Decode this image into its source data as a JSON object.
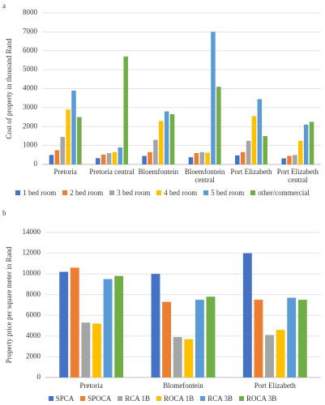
{
  "chart_data": [
    {
      "type": "bar",
      "panel_label": "a",
      "y_label": "Cost of property in thousand Rand",
      "categories": [
        "Pretoria",
        "Pretoria central",
        "Bloemfontein",
        "Bloemfontein central",
        "Port Elizabeth",
        "Port Elizabeth central"
      ],
      "series": [
        {
          "name": "1 bed room",
          "color": "#4472c4",
          "values": [
            500,
            330,
            450,
            380,
            480,
            320
          ]
        },
        {
          "name": "2 bed room",
          "color": "#ed7d31",
          "values": [
            750,
            520,
            650,
            600,
            650,
            450
          ]
        },
        {
          "name": "3 bed room",
          "color": "#a5a5a5",
          "values": [
            1450,
            600,
            1300,
            650,
            1250,
            500
          ]
        },
        {
          "name": "4 bed room",
          "color": "#ffc000",
          "values": [
            2900,
            650,
            2300,
            620,
            2550,
            1250
          ]
        },
        {
          "name": "5 bed room",
          "color": "#5b9bd5",
          "values": [
            3900,
            900,
            2800,
            7000,
            3450,
            2100
          ]
        },
        {
          "name": "other/commercial",
          "color": "#70ad47",
          "values": [
            2500,
            5700,
            2650,
            4100,
            1500,
            2250
          ]
        }
      ],
      "ylim": [
        0,
        8000
      ],
      "yticks": [
        0,
        1000,
        2000,
        3000,
        4000,
        5000,
        6000,
        7000,
        8000
      ],
      "grid": true
    },
    {
      "type": "bar",
      "panel_label": "b",
      "y_label": "Property price per square meter  in  Rand",
      "categories": [
        "Pretoria",
        "Blomefontein",
        "Port Elizabeth"
      ],
      "series": [
        {
          "name": "SPCA",
          "color": "#4472c4",
          "values": [
            10200,
            10000,
            12000
          ]
        },
        {
          "name": "SPOCA",
          "color": "#ed7d31",
          "values": [
            10600,
            7300,
            7500
          ]
        },
        {
          "name": "RCA 1B",
          "color": "#a5a5a5",
          "values": [
            5300,
            3900,
            4100
          ]
        },
        {
          "name": "ROCA 1B",
          "color": "#ffc000",
          "values": [
            5200,
            3700,
            4600
          ]
        },
        {
          "name": "RCA 3B",
          "color": "#5b9bd5",
          "values": [
            9500,
            7500,
            7700
          ]
        },
        {
          "name": "ROCA 3B",
          "color": "#70ad47",
          "values": [
            9800,
            7800,
            7500
          ]
        }
      ],
      "ylim": [
        0,
        14000
      ],
      "yticks": [
        0,
        2000,
        4000,
        6000,
        8000,
        10000,
        12000,
        14000
      ],
      "grid": true
    }
  ]
}
